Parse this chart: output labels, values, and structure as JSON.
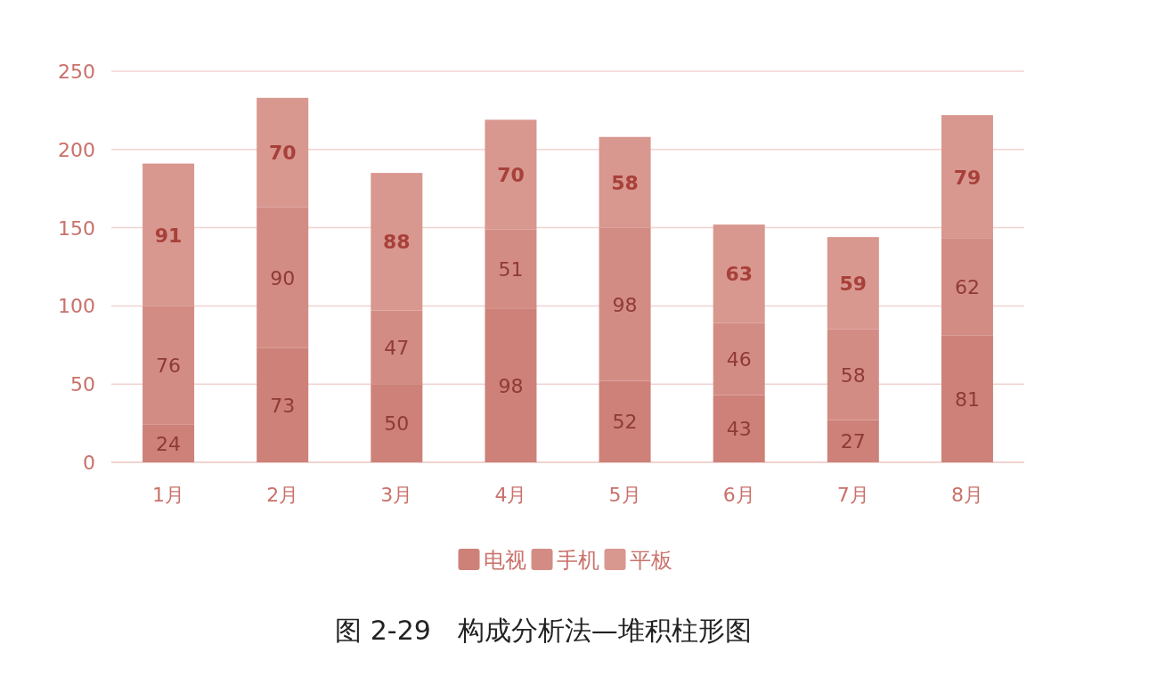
{
  "chart_data": {
    "type": "bar",
    "stacked": true,
    "title": "图 2-29　构成分析法—堆积柱形图",
    "categories": [
      "1月",
      "2月",
      "3月",
      "4月",
      "5月",
      "6月",
      "7月",
      "8月"
    ],
    "series": [
      {
        "name": "电视",
        "color": "#cd8179",
        "values": [
          24,
          73,
          50,
          98,
          52,
          43,
          27,
          81
        ]
      },
      {
        "name": "手机",
        "color": "#d38c84",
        "values": [
          76,
          90,
          47,
          51,
          98,
          46,
          58,
          62
        ]
      },
      {
        "name": "平板",
        "color": "#d8978f",
        "values": [
          91,
          70,
          88,
          70,
          58,
          63,
          59,
          79
        ]
      }
    ],
    "ylim": [
      0,
      250
    ],
    "yticks": [
      0,
      50,
      100,
      150,
      200,
      250
    ],
    "grid": "y",
    "legend": "bottom",
    "data_labels": true
  }
}
